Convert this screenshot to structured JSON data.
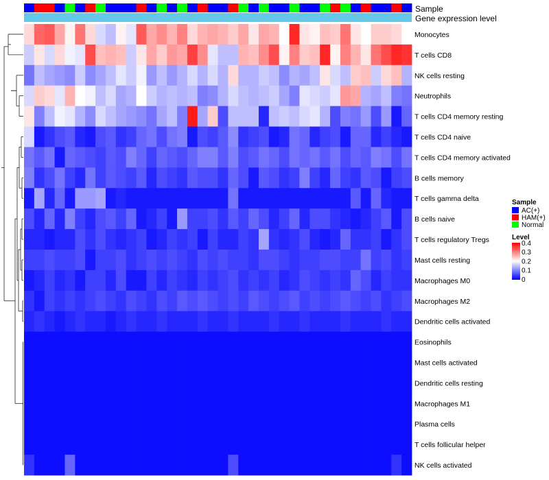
{
  "chart_data": {
    "type": "heatmap",
    "n_columns": 38,
    "annotations": [
      {
        "name": "Sample"
      },
      {
        "name": "Gene expression level"
      }
    ],
    "sample_groups": [
      {
        "name": "AC(+)",
        "color": "#0000ff"
      },
      {
        "name": "HAM(+)",
        "color": "#ff0000"
      },
      {
        "name": "Normal",
        "color": "#00ff00"
      }
    ],
    "sample_sequence": [
      0,
      1,
      1,
      0,
      2,
      0,
      1,
      2,
      0,
      0,
      0,
      1,
      0,
      2,
      0,
      2,
      0,
      1,
      0,
      0,
      1,
      2,
      0,
      2,
      0,
      0,
      2,
      0,
      0,
      2,
      1,
      2,
      0,
      1,
      0,
      0,
      1,
      0
    ],
    "gene_expression_color": "#66c8e8",
    "color_scale": {
      "title": "Level",
      "min": 0,
      "max": 0.4,
      "ticks": [
        "0.4",
        "0.3",
        "0.2",
        "0.1",
        "0"
      ],
      "colors": {
        "low": "#0000ff",
        "mid": "#ffffff",
        "high": "#ff0000"
      }
    },
    "rows": [
      {
        "label": "Monocytes",
        "values": [
          0.23,
          0.32,
          0.33,
          0.27,
          0.21,
          0.31,
          0.23,
          0.17,
          0.15,
          0.21,
          0.18,
          0.33,
          0.27,
          0.29,
          0.26,
          0.3,
          0.23,
          0.26,
          0.27,
          0.26,
          0.24,
          0.27,
          0.22,
          0.27,
          0.26,
          0.2,
          0.37,
          0.22,
          0.21,
          0.25,
          0.24,
          0.31,
          0.22,
          0.2,
          0.24,
          0.24,
          0.23,
          0.2
        ]
      },
      {
        "label": "T cells CD8",
        "values": [
          0.16,
          0.22,
          0.17,
          0.23,
          0.19,
          0.18,
          0.34,
          0.25,
          0.26,
          0.25,
          0.16,
          0.22,
          0.27,
          0.24,
          0.28,
          0.27,
          0.35,
          0.29,
          0.18,
          0.15,
          0.15,
          0.26,
          0.25,
          0.29,
          0.34,
          0.21,
          0.3,
          0.24,
          0.25,
          0.37,
          0.21,
          0.3,
          0.26,
          0.22,
          0.31,
          0.34,
          0.37,
          0.36
        ]
      },
      {
        "label": "NK cells resting",
        "values": [
          0.09,
          0.15,
          0.13,
          0.12,
          0.11,
          0.16,
          0.11,
          0.13,
          0.15,
          0.18,
          0.16,
          0.19,
          0.12,
          0.15,
          0.12,
          0.14,
          0.17,
          0.14,
          0.17,
          0.14,
          0.23,
          0.14,
          0.14,
          0.16,
          0.15,
          0.11,
          0.14,
          0.13,
          0.15,
          0.22,
          0.17,
          0.15,
          0.24,
          0.25,
          0.16,
          0.23,
          0.25,
          0.14
        ]
      },
      {
        "label": "Neutrophils",
        "values": [
          0.17,
          0.24,
          0.23,
          0.18,
          0.26,
          0.2,
          0.19,
          0.15,
          0.17,
          0.13,
          0.14,
          0.2,
          0.16,
          0.14,
          0.15,
          0.14,
          0.15,
          0.1,
          0.11,
          0.14,
          0.17,
          0.15,
          0.14,
          0.15,
          0.16,
          0.13,
          0.1,
          0.18,
          0.17,
          0.16,
          0.18,
          0.28,
          0.27,
          0.14,
          0.13,
          0.15,
          0.1,
          0.09
        ]
      },
      {
        "label": "T cells CD4 memory resting",
        "values": [
          0.22,
          0.1,
          0.15,
          0.19,
          0.18,
          0.14,
          0.11,
          0.17,
          0.15,
          0.13,
          0.12,
          0.11,
          0.09,
          0.13,
          0.15,
          0.1,
          0.38,
          0.13,
          0.24,
          0.06,
          0.15,
          0.15,
          0.15,
          0.03,
          0.15,
          0.16,
          0.15,
          0.17,
          0.18,
          0.14,
          0.06,
          0.1,
          0.09,
          0.12,
          0.06,
          0.12,
          0.02,
          0.08
        ]
      },
      {
        "label": "T cells CD4 naive",
        "values": [
          0.17,
          0.02,
          0.04,
          0.06,
          0.07,
          0.03,
          0.02,
          0.06,
          0.07,
          0.04,
          0.05,
          0.08,
          0.09,
          0.06,
          0.09,
          0.1,
          0.02,
          0.06,
          0.05,
          0.07,
          0.11,
          0.04,
          0.05,
          0.06,
          0.02,
          0.03,
          0.09,
          0.08,
          0.03,
          0.05,
          0.06,
          0.02,
          0.08,
          0.08,
          0.03,
          0.05,
          0.03,
          0.02
        ]
      },
      {
        "label": "T cells CD4 memory activated",
        "values": [
          0.09,
          0.07,
          0.09,
          0.02,
          0.08,
          0.07,
          0.06,
          0.05,
          0.07,
          0.06,
          0.1,
          0.08,
          0.05,
          0.08,
          0.07,
          0.06,
          0.08,
          0.1,
          0.1,
          0.07,
          0.1,
          0.06,
          0.07,
          0.09,
          0.08,
          0.06,
          0.09,
          0.08,
          0.09,
          0.07,
          0.09,
          0.06,
          0.08,
          0.07,
          0.1,
          0.09,
          0.06,
          0.09
        ]
      },
      {
        "label": "B cells memory",
        "values": [
          0.1,
          0.04,
          0.06,
          0.09,
          0.05,
          0.03,
          0.09,
          0.05,
          0.07,
          0.06,
          0.05,
          0.07,
          0.03,
          0.06,
          0.05,
          0.04,
          0.07,
          0.06,
          0.06,
          0.04,
          0.08,
          0.06,
          0.02,
          0.07,
          0.06,
          0.04,
          0.05,
          0.1,
          0.05,
          0.03,
          0.08,
          0.05,
          0.04,
          0.07,
          0.06,
          0.02,
          0.05,
          0.06
        ]
      },
      {
        "label": "T cells gamma delta",
        "values": [
          0.02,
          0.13,
          0.03,
          0.08,
          0.02,
          0.12,
          0.12,
          0.13,
          0.02,
          0.03,
          0.02,
          0.02,
          0.02,
          0.02,
          0.02,
          0.02,
          0.02,
          0.02,
          0.02,
          0.02,
          0.09,
          0.02,
          0.02,
          0.02,
          0.02,
          0.02,
          0.02,
          0.02,
          0.02,
          0.02,
          0.02,
          0.02,
          0.07,
          0.02,
          0.08,
          0.03,
          0.02,
          0.02
        ]
      },
      {
        "label": "B cells naive",
        "values": [
          0.06,
          0.03,
          0.08,
          0.03,
          0.1,
          0.05,
          0.03,
          0.06,
          0.07,
          0.05,
          0.08,
          0.02,
          0.03,
          0.05,
          0.02,
          0.12,
          0.05,
          0.05,
          0.06,
          0.04,
          0.07,
          0.05,
          0.08,
          0.06,
          0.03,
          0.05,
          0.08,
          0.03,
          0.06,
          0.06,
          0.04,
          0.03,
          0.02,
          0.03,
          0.05,
          0.07,
          0.02,
          0.06
        ]
      },
      {
        "label": "T cells regulatory  Tregs",
        "values": [
          0.03,
          0.03,
          0.02,
          0.03,
          0.03,
          0.06,
          0.04,
          0.06,
          0.04,
          0.03,
          0.04,
          0.05,
          0.02,
          0.03,
          0.05,
          0.04,
          0.05,
          0.02,
          0.05,
          0.03,
          0.03,
          0.05,
          0.04,
          0.13,
          0.04,
          0.03,
          0.04,
          0.06,
          0.03,
          0.02,
          0.03,
          0.08,
          0.04,
          0.04,
          0.05,
          0.02,
          0.04,
          0.06
        ]
      },
      {
        "label": "Mast cells resting",
        "values": [
          0.05,
          0.05,
          0.06,
          0.05,
          0.05,
          0.06,
          0.02,
          0.05,
          0.05,
          0.06,
          0.04,
          0.05,
          0.06,
          0.05,
          0.06,
          0.05,
          0.04,
          0.06,
          0.05,
          0.06,
          0.05,
          0.05,
          0.04,
          0.06,
          0.06,
          0.05,
          0.04,
          0.05,
          0.05,
          0.06,
          0.06,
          0.05,
          0.05,
          0.09,
          0.05,
          0.06,
          0.04,
          0.05
        ]
      },
      {
        "label": "Macrophages M0",
        "values": [
          0.02,
          0.03,
          0.05,
          0.03,
          0.04,
          0.02,
          0.05,
          0.05,
          0.03,
          0.06,
          0.02,
          0.02,
          0.05,
          0.03,
          0.05,
          0.04,
          0.03,
          0.05,
          0.04,
          0.05,
          0.06,
          0.04,
          0.05,
          0.04,
          0.05,
          0.03,
          0.04,
          0.06,
          0.05,
          0.04,
          0.05,
          0.04,
          0.08,
          0.06,
          0.03,
          0.05,
          0.04,
          0.04
        ]
      },
      {
        "label": "Macrophages M2",
        "values": [
          0.04,
          0.02,
          0.05,
          0.04,
          0.05,
          0.04,
          0.05,
          0.06,
          0.05,
          0.04,
          0.06,
          0.05,
          0.04,
          0.06,
          0.05,
          0.07,
          0.06,
          0.07,
          0.06,
          0.05,
          0.06,
          0.05,
          0.07,
          0.06,
          0.05,
          0.06,
          0.07,
          0.05,
          0.06,
          0.05,
          0.06,
          0.07,
          0.06,
          0.05,
          0.06,
          0.04,
          0.05,
          0.06
        ]
      },
      {
        "label": "Dendritic cells activated",
        "values": [
          0.03,
          0.04,
          0.03,
          0.02,
          0.03,
          0.04,
          0.03,
          0.03,
          0.02,
          0.03,
          0.04,
          0.03,
          0.03,
          0.04,
          0.03,
          0.03,
          0.03,
          0.04,
          0.03,
          0.03,
          0.04,
          0.03,
          0.03,
          0.03,
          0.04,
          0.03,
          0.03,
          0.04,
          0.03,
          0.03,
          0.03,
          0.04,
          0.03,
          0.03,
          0.03,
          0.04,
          0.03,
          0.03
        ]
      },
      {
        "label": "Eosinophils",
        "values": [
          0.01,
          0.01,
          0.01,
          0.01,
          0.01,
          0.01,
          0.01,
          0.01,
          0.01,
          0.01,
          0.01,
          0.01,
          0.01,
          0.01,
          0.01,
          0.01,
          0.01,
          0.01,
          0.01,
          0.01,
          0.01,
          0.01,
          0.01,
          0.01,
          0.01,
          0.01,
          0.01,
          0.01,
          0.01,
          0.01,
          0.01,
          0.01,
          0.01,
          0.01,
          0.01,
          0.01,
          0.01,
          0.01
        ]
      },
      {
        "label": "Mast cells activated",
        "values": [
          0.01,
          0.01,
          0.01,
          0.01,
          0.01,
          0.01,
          0.01,
          0.01,
          0.01,
          0.01,
          0.01,
          0.01,
          0.01,
          0.01,
          0.01,
          0.01,
          0.01,
          0.01,
          0.01,
          0.01,
          0.01,
          0.01,
          0.01,
          0.01,
          0.01,
          0.01,
          0.01,
          0.01,
          0.01,
          0.01,
          0.01,
          0.01,
          0.01,
          0.01,
          0.01,
          0.01,
          0.01,
          0.01
        ]
      },
      {
        "label": "Dendritic cells resting",
        "values": [
          0.01,
          0.01,
          0.01,
          0.01,
          0.01,
          0.01,
          0.01,
          0.01,
          0.01,
          0.01,
          0.01,
          0.01,
          0.01,
          0.01,
          0.01,
          0.01,
          0.01,
          0.01,
          0.01,
          0.01,
          0.01,
          0.01,
          0.01,
          0.01,
          0.01,
          0.01,
          0.01,
          0.01,
          0.01,
          0.01,
          0.01,
          0.01,
          0.01,
          0.01,
          0.01,
          0.01,
          0.01,
          0.01
        ]
      },
      {
        "label": "Macrophages M1",
        "values": [
          0.01,
          0.01,
          0.01,
          0.01,
          0.01,
          0.01,
          0.01,
          0.01,
          0.01,
          0.01,
          0.01,
          0.01,
          0.01,
          0.01,
          0.01,
          0.01,
          0.01,
          0.01,
          0.01,
          0.01,
          0.01,
          0.01,
          0.01,
          0.01,
          0.01,
          0.01,
          0.01,
          0.01,
          0.01,
          0.01,
          0.01,
          0.01,
          0.01,
          0.01,
          0.01,
          0.01,
          0.01,
          0.01
        ]
      },
      {
        "label": "Plasma cells",
        "values": [
          0.01,
          0.01,
          0.01,
          0.01,
          0.01,
          0.01,
          0.01,
          0.01,
          0.01,
          0.01,
          0.01,
          0.01,
          0.01,
          0.01,
          0.01,
          0.01,
          0.01,
          0.01,
          0.01,
          0.01,
          0.01,
          0.01,
          0.01,
          0.01,
          0.01,
          0.01,
          0.01,
          0.01,
          0.01,
          0.01,
          0.01,
          0.01,
          0.01,
          0.01,
          0.01,
          0.01,
          0.01,
          0.01
        ]
      },
      {
        "label": "T cells follicular helper",
        "values": [
          0.01,
          0.01,
          0.01,
          0.01,
          0.01,
          0.01,
          0.01,
          0.01,
          0.01,
          0.01,
          0.01,
          0.01,
          0.01,
          0.01,
          0.01,
          0.01,
          0.01,
          0.01,
          0.01,
          0.01,
          0.01,
          0.01,
          0.01,
          0.01,
          0.01,
          0.01,
          0.01,
          0.01,
          0.01,
          0.01,
          0.01,
          0.01,
          0.01,
          0.01,
          0.01,
          0.01,
          0.01,
          0.01
        ]
      },
      {
        "label": "NK cells activated",
        "values": [
          0.04,
          0.01,
          0.01,
          0.01,
          0.08,
          0.01,
          0.01,
          0.01,
          0.01,
          0.01,
          0.01,
          0.01,
          0.01,
          0.01,
          0.01,
          0.01,
          0.01,
          0.01,
          0.01,
          0.01,
          0.06,
          0.01,
          0.01,
          0.01,
          0.01,
          0.01,
          0.01,
          0.01,
          0.01,
          0.01,
          0.01,
          0.01,
          0.01,
          0.01,
          0.01,
          0.01,
          0.04,
          0.01
        ]
      }
    ]
  }
}
